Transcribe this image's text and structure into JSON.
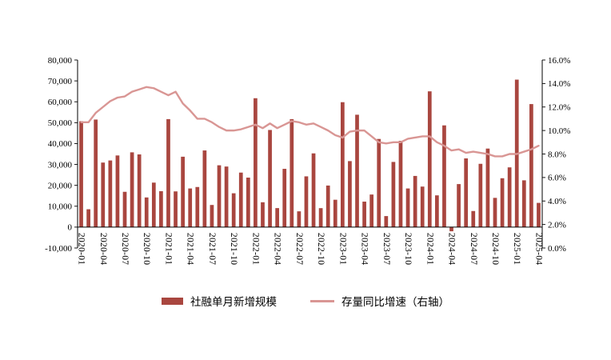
{
  "chart_data": {
    "type": "combo",
    "title": "",
    "grid": false,
    "legend_position": "bottom",
    "x_tick_every": 3,
    "categories": [
      "2020-01",
      "2020-02",
      "2020-03",
      "2020-04",
      "2020-05",
      "2020-06",
      "2020-07",
      "2020-08",
      "2020-09",
      "2020-10",
      "2020-11",
      "2020-12",
      "2021-01",
      "2021-02",
      "2021-03",
      "2021-04",
      "2021-05",
      "2021-06",
      "2021-07",
      "2021-08",
      "2021-09",
      "2021-10",
      "2021-11",
      "2021-12",
      "2022-01",
      "2022-02",
      "2022-03",
      "2022-04",
      "2022-05",
      "2022-06",
      "2022-07",
      "2022-08",
      "2022-09",
      "2022-10",
      "2022-11",
      "2022-12",
      "2023-01",
      "2023-02",
      "2023-03",
      "2023-04",
      "2023-05",
      "2023-06",
      "2023-07",
      "2023-08",
      "2023-09",
      "2023-10",
      "2023-11",
      "2023-12",
      "2024-01",
      "2024-02",
      "2024-03",
      "2024-04",
      "2024-05",
      "2024-06",
      "2024-07",
      "2024-08",
      "2024-09",
      "2024-10",
      "2024-11",
      "2024-12",
      "2025-01",
      "2025-02",
      "2025-03",
      "2025-04"
    ],
    "series": [
      {
        "name": "社融单月新增规模",
        "type": "bar",
        "axis": "left",
        "color": "#A9463F",
        "values": [
          50700,
          8554,
          51490,
          30900,
          31900,
          34300,
          16900,
          35800,
          34800,
          14200,
          21300,
          17200,
          51700,
          17100,
          33700,
          18500,
          19200,
          36700,
          10600,
          29600,
          29000,
          16200,
          26100,
          23700,
          61700,
          11900,
          46500,
          9102,
          27900,
          51700,
          7561,
          24300,
          35300,
          9079,
          19900,
          13100,
          59800,
          31600,
          53800,
          12200,
          15600,
          42200,
          5282,
          31200,
          41300,
          18500,
          24500,
          19400,
          65000,
          15200,
          48700,
          -2000,
          20600,
          32900,
          7707,
          30300,
          37600,
          14000,
          23400,
          28600,
          70600,
          22400,
          58900,
          11600
        ]
      },
      {
        "name": "存量同比增速（右轴）",
        "type": "line",
        "axis": "right",
        "color": "#D99694",
        "values": [
          10.7,
          10.7,
          11.5,
          12.0,
          12.5,
          12.8,
          12.9,
          13.3,
          13.5,
          13.7,
          13.6,
          13.3,
          13.0,
          13.3,
          12.3,
          11.7,
          11.0,
          11.0,
          10.7,
          10.3,
          10.0,
          10.0,
          10.1,
          10.3,
          10.5,
          10.2,
          10.6,
          10.2,
          10.5,
          10.8,
          10.7,
          10.5,
          10.6,
          10.3,
          10.0,
          9.6,
          9.4,
          9.9,
          10.0,
          10.0,
          9.5,
          9.0,
          8.9,
          9.0,
          9.0,
          9.3,
          9.4,
          9.5,
          9.5,
          9.0,
          8.7,
          8.3,
          8.4,
          8.1,
          8.2,
          8.1,
          8.0,
          7.8,
          7.8,
          8.0,
          8.0,
          8.2,
          8.4,
          8.7
        ]
      }
    ],
    "left_axis": {
      "min": -10000,
      "max": 80000,
      "step": 10000
    },
    "right_axis": {
      "min": 0,
      "max": 16,
      "step": 2,
      "suffix": "%"
    },
    "left_axis_tick_labels": [
      "-10,000",
      "0",
      "10,000",
      "20,000",
      "30,000",
      "40,000",
      "50,000",
      "60,000",
      "70,000",
      "80,000"
    ],
    "right_axis_tick_labels": [
      "0.0%",
      "2.0%",
      "4.0%",
      "6.0%",
      "8.0%",
      "10.0%",
      "12.0%",
      "14.0%",
      "16.0%"
    ]
  },
  "colors": {
    "background": "#FFFFFF",
    "axis": "#000000",
    "text": "#000000"
  }
}
